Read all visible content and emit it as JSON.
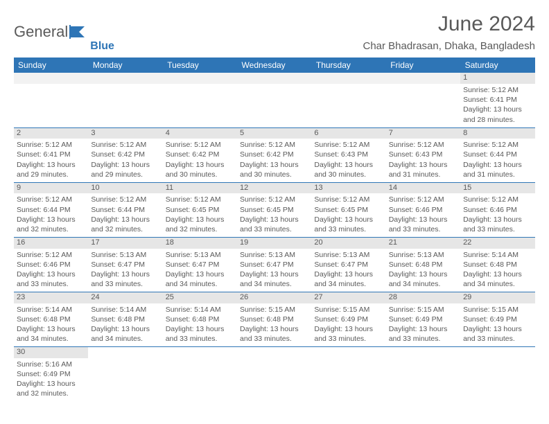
{
  "brand": {
    "name_a": "General",
    "name_b": "Blue"
  },
  "title": "June 2024",
  "location": "Char Bhadrasan, Dhaka, Bangladesh",
  "colors": {
    "header_bg": "#2e75b6",
    "header_fg": "#ffffff",
    "daynum_bg": "#e6e6e6",
    "text": "#595959",
    "rule": "#2e75b6",
    "blank_bg": "#f2f2f2"
  },
  "weekdays": [
    "Sunday",
    "Monday",
    "Tuesday",
    "Wednesday",
    "Thursday",
    "Friday",
    "Saturday"
  ],
  "weeks": [
    [
      null,
      null,
      null,
      null,
      null,
      null,
      {
        "d": "1",
        "sr": "5:12 AM",
        "ss": "6:41 PM",
        "dl": "13 hours and 28 minutes."
      }
    ],
    [
      {
        "d": "2",
        "sr": "5:12 AM",
        "ss": "6:41 PM",
        "dl": "13 hours and 29 minutes."
      },
      {
        "d": "3",
        "sr": "5:12 AM",
        "ss": "6:42 PM",
        "dl": "13 hours and 29 minutes."
      },
      {
        "d": "4",
        "sr": "5:12 AM",
        "ss": "6:42 PM",
        "dl": "13 hours and 30 minutes."
      },
      {
        "d": "5",
        "sr": "5:12 AM",
        "ss": "6:42 PM",
        "dl": "13 hours and 30 minutes."
      },
      {
        "d": "6",
        "sr": "5:12 AM",
        "ss": "6:43 PM",
        "dl": "13 hours and 30 minutes."
      },
      {
        "d": "7",
        "sr": "5:12 AM",
        "ss": "6:43 PM",
        "dl": "13 hours and 31 minutes."
      },
      {
        "d": "8",
        "sr": "5:12 AM",
        "ss": "6:44 PM",
        "dl": "13 hours and 31 minutes."
      }
    ],
    [
      {
        "d": "9",
        "sr": "5:12 AM",
        "ss": "6:44 PM",
        "dl": "13 hours and 32 minutes."
      },
      {
        "d": "10",
        "sr": "5:12 AM",
        "ss": "6:44 PM",
        "dl": "13 hours and 32 minutes."
      },
      {
        "d": "11",
        "sr": "5:12 AM",
        "ss": "6:45 PM",
        "dl": "13 hours and 32 minutes."
      },
      {
        "d": "12",
        "sr": "5:12 AM",
        "ss": "6:45 PM",
        "dl": "13 hours and 33 minutes."
      },
      {
        "d": "13",
        "sr": "5:12 AM",
        "ss": "6:45 PM",
        "dl": "13 hours and 33 minutes."
      },
      {
        "d": "14",
        "sr": "5:12 AM",
        "ss": "6:46 PM",
        "dl": "13 hours and 33 minutes."
      },
      {
        "d": "15",
        "sr": "5:12 AM",
        "ss": "6:46 PM",
        "dl": "13 hours and 33 minutes."
      }
    ],
    [
      {
        "d": "16",
        "sr": "5:12 AM",
        "ss": "6:46 PM",
        "dl": "13 hours and 33 minutes."
      },
      {
        "d": "17",
        "sr": "5:13 AM",
        "ss": "6:47 PM",
        "dl": "13 hours and 33 minutes."
      },
      {
        "d": "18",
        "sr": "5:13 AM",
        "ss": "6:47 PM",
        "dl": "13 hours and 34 minutes."
      },
      {
        "d": "19",
        "sr": "5:13 AM",
        "ss": "6:47 PM",
        "dl": "13 hours and 34 minutes."
      },
      {
        "d": "20",
        "sr": "5:13 AM",
        "ss": "6:47 PM",
        "dl": "13 hours and 34 minutes."
      },
      {
        "d": "21",
        "sr": "5:13 AM",
        "ss": "6:48 PM",
        "dl": "13 hours and 34 minutes."
      },
      {
        "d": "22",
        "sr": "5:14 AM",
        "ss": "6:48 PM",
        "dl": "13 hours and 34 minutes."
      }
    ],
    [
      {
        "d": "23",
        "sr": "5:14 AM",
        "ss": "6:48 PM",
        "dl": "13 hours and 34 minutes."
      },
      {
        "d": "24",
        "sr": "5:14 AM",
        "ss": "6:48 PM",
        "dl": "13 hours and 34 minutes."
      },
      {
        "d": "25",
        "sr": "5:14 AM",
        "ss": "6:48 PM",
        "dl": "13 hours and 33 minutes."
      },
      {
        "d": "26",
        "sr": "5:15 AM",
        "ss": "6:48 PM",
        "dl": "13 hours and 33 minutes."
      },
      {
        "d": "27",
        "sr": "5:15 AM",
        "ss": "6:49 PM",
        "dl": "13 hours and 33 minutes."
      },
      {
        "d": "28",
        "sr": "5:15 AM",
        "ss": "6:49 PM",
        "dl": "13 hours and 33 minutes."
      },
      {
        "d": "29",
        "sr": "5:15 AM",
        "ss": "6:49 PM",
        "dl": "13 hours and 33 minutes."
      }
    ],
    [
      {
        "d": "30",
        "sr": "5:16 AM",
        "ss": "6:49 PM",
        "dl": "13 hours and 32 minutes."
      },
      null,
      null,
      null,
      null,
      null,
      null
    ]
  ],
  "labels": {
    "sunrise": "Sunrise:",
    "sunset": "Sunset:",
    "daylight": "Daylight:"
  }
}
